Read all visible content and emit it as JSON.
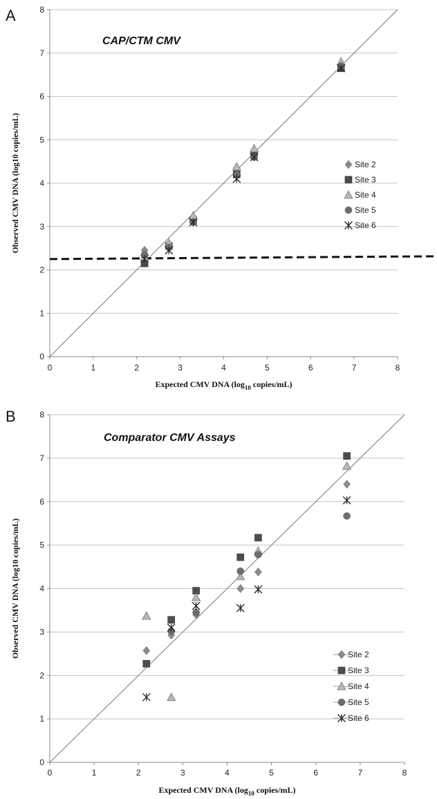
{
  "figure": {
    "legend_markers": {
      "Site 2": "diamond",
      "Site 3": "square",
      "Site 4": "triangle",
      "Site 5": "circle",
      "Site 6": "asterisk"
    },
    "series_colors": {
      "Site 2": "#8c8c8c",
      "Site 3": "#4d4d4d",
      "Site 4": "#b8b8b8",
      "Site 5": "#6e6e6e",
      "Site 6": "#2a2a2a"
    }
  },
  "chart_data": [
    {
      "panel": "A",
      "type": "scatter",
      "title": "CAP/CTM CMV",
      "xlabel": "Expected CMV DNA (log10 copies/mL)",
      "ylabel": "Observed CMV DNA (log10 copies/mL)",
      "xlim": [
        0,
        8
      ],
      "ylim": [
        0,
        8
      ],
      "xticks": [
        0,
        1,
        2,
        3,
        4,
        5,
        6,
        7,
        8
      ],
      "yticks": [
        0,
        1,
        2,
        3,
        4,
        5,
        6,
        7,
        8
      ],
      "grid": "horizontal",
      "legend_position": "right-middle",
      "reference_line": "y = x",
      "threshold_line": {
        "y": 2.25,
        "style": "dashed"
      },
      "series": [
        {
          "name": "Site 2",
          "x": [
            2.18,
            2.74,
            3.3,
            4.3,
            4.7,
            6.7
          ],
          "y": [
            2.45,
            2.6,
            3.2,
            4.3,
            4.7,
            6.75
          ]
        },
        {
          "name": "Site 3",
          "x": [
            2.18,
            2.74,
            3.3,
            4.3,
            4.7,
            6.7
          ],
          "y": [
            2.15,
            2.55,
            3.15,
            4.2,
            4.65,
            6.65
          ]
        },
        {
          "name": "Site 4",
          "x": [
            2.18,
            2.74,
            3.3,
            4.3,
            4.7,
            6.7
          ],
          "y": [
            2.3,
            2.62,
            3.25,
            4.38,
            4.8,
            6.8
          ]
        },
        {
          "name": "Site 5",
          "x": [
            2.18,
            2.74,
            3.3,
            4.3,
            4.7,
            6.7
          ],
          "y": [
            2.35,
            2.52,
            3.1,
            4.2,
            4.6,
            6.7
          ]
        },
        {
          "name": "Site 6",
          "x": [
            2.18,
            2.74,
            3.3,
            4.3,
            4.7,
            6.7
          ],
          "y": [
            2.25,
            2.45,
            3.1,
            4.1,
            4.6,
            6.65
          ]
        }
      ]
    },
    {
      "panel": "B",
      "type": "scatter",
      "title": "Comparator CMV Assays",
      "xlabel": "Expected CMV DNA (log10 copies/mL)",
      "ylabel": "Observed CMV DNA (log10 copies/mL)",
      "xlim": [
        0,
        8
      ],
      "ylim": [
        0,
        8
      ],
      "xticks": [
        0,
        1,
        2,
        3,
        4,
        5,
        6,
        7,
        8
      ],
      "yticks": [
        0,
        1,
        2,
        3,
        4,
        5,
        6,
        7,
        8
      ],
      "grid": "horizontal",
      "legend_position": "bottom-right",
      "reference_line": "y = x",
      "series": [
        {
          "name": "Site 2",
          "x": [
            2.18,
            2.74,
            3.3,
            4.3,
            4.7,
            6.7
          ],
          "y": [
            2.57,
            2.93,
            3.4,
            4.0,
            4.38,
            6.4
          ]
        },
        {
          "name": "Site 3",
          "x": [
            2.18,
            2.74,
            3.3,
            4.3,
            4.7,
            6.7
          ],
          "y": [
            2.27,
            3.28,
            3.95,
            4.72,
            5.17,
            7.05
          ]
        },
        {
          "name": "Site 4",
          "x": [
            2.18,
            2.74,
            3.3,
            4.3,
            4.7,
            6.7
          ],
          "y": [
            3.37,
            1.5,
            3.8,
            4.28,
            4.87,
            6.82
          ]
        },
        {
          "name": "Site 5",
          "x": [
            2.74,
            3.3,
            4.3,
            4.7,
            6.7
          ],
          "y": [
            3.02,
            3.45,
            4.4,
            4.78,
            5.67
          ]
        },
        {
          "name": "Site 6",
          "x": [
            2.18,
            2.74,
            3.3,
            4.3,
            4.7,
            6.7
          ],
          "y": [
            1.5,
            3.1,
            3.6,
            3.55,
            3.98,
            6.03
          ]
        }
      ]
    }
  ]
}
